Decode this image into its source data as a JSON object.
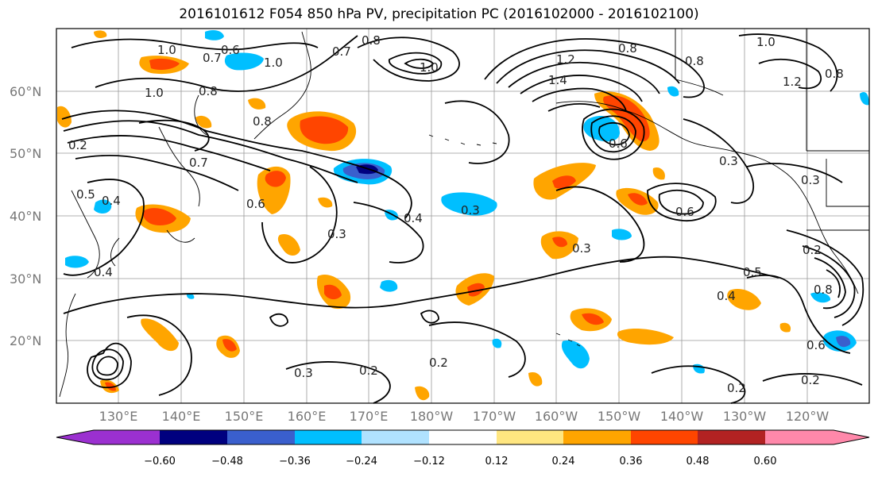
{
  "title": "2016101612 F054 850 hPa PV, precipitation PC (2016102000 - 2016102100)",
  "lat_labels": [
    "60°N",
    "50°N",
    "40°N",
    "30°N",
    "20°N"
  ],
  "lon_labels": [
    "130°E",
    "140°E",
    "150°E",
    "160°E",
    "170°E",
    "180°W",
    "170°W",
    "160°W",
    "150°W",
    "140°W",
    "130°W",
    "120°W"
  ],
  "contour_labels": [
    "1.0",
    "0.7",
    "0.6",
    "1.0",
    "0.7",
    "0.8",
    "1.0",
    "1.2",
    "1.4",
    "0.8",
    "1.0",
    "0.8",
    "0.8",
    "1.2",
    "0.8",
    "1.0",
    "0.8",
    "0.2",
    "0.7",
    "0.5",
    "0.4",
    "0.6",
    "0.3",
    "0.4",
    "0.3",
    "0.6",
    "0.3",
    "0.6",
    "0.3",
    "0.4",
    "0.3",
    "0.5",
    "0.8",
    "0.4",
    "0.3",
    "0.2",
    "0.2",
    "0.2",
    "0.2",
    "0.2",
    "0.6"
  ],
  "colorbar": {
    "tick_labels": [
      "−0.60",
      "−0.48",
      "−0.36",
      "−0.24",
      "−0.12",
      "0.12",
      "0.24",
      "0.36",
      "0.48",
      "0.60"
    ],
    "colors": [
      "#9b30d0",
      "#00007f",
      "#3a5fcd",
      "#00bfff",
      "#b0e2ff",
      "#ffffff",
      "#ffe680",
      "#ffa500",
      "#ff4500",
      "#b22222",
      "#ff88aa"
    ]
  },
  "chart_data": {
    "type": "map",
    "title": "2016101612 F054 850 hPa PV, precipitation PC (2016102000 - 2016102100)",
    "colorbar_ticks": [
      -0.6,
      -0.48,
      -0.36,
      -0.24,
      -0.12,
      0.12,
      0.24,
      0.36,
      0.48,
      0.6
    ],
    "contour_levels_labeled": [
      0.2,
      0.3,
      0.4,
      0.5,
      0.6,
      0.7,
      0.8,
      1.0,
      1.2,
      1.4
    ]
  }
}
